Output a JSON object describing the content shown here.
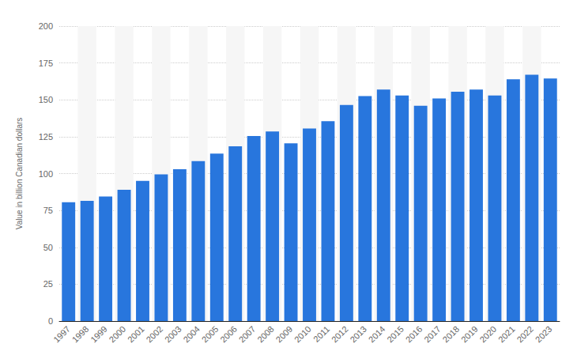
{
  "chart_data": {
    "type": "bar",
    "y_label": "Value in billion Canadian dollars",
    "categories": [
      "1997",
      "1998",
      "1999",
      "2000",
      "2001",
      "2002",
      "2003",
      "2004",
      "2005",
      "2006",
      "2007",
      "2008",
      "2009",
      "2010",
      "2011",
      "2012",
      "2013",
      "2014",
      "2015",
      "2016",
      "2017",
      "2018",
      "2019",
      "2020",
      "2021",
      "2022",
      "2023"
    ],
    "values": [
      80.5,
      81.5,
      84.5,
      89,
      95,
      99.5,
      103,
      108.5,
      113.5,
      118.5,
      125.5,
      128.5,
      120.5,
      130.5,
      135.5,
      146.5,
      152.5,
      157,
      153,
      146,
      151,
      155.5,
      157,
      153,
      164,
      167,
      164.5
    ],
    "color": "#2876dd",
    "ylim": [
      0,
      200
    ],
    "yticks": [
      0,
      25,
      50,
      75,
      100,
      125,
      150,
      175,
      200
    ],
    "grid": true
  }
}
